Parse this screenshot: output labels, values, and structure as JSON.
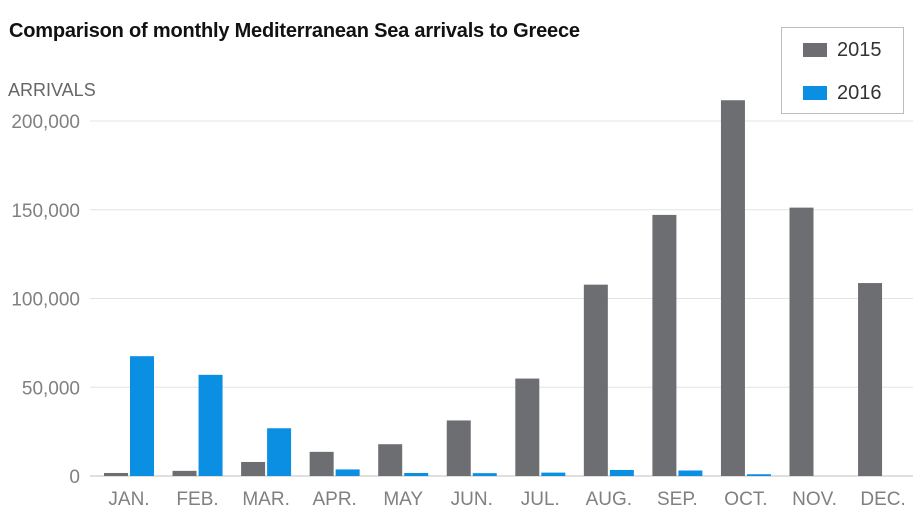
{
  "chart_data": {
    "type": "bar",
    "title": "Comparison of monthly Mediterranean Sea arrivals to Greece",
    "ylabel": "ARRIVALS",
    "xlabel": "",
    "categories": [
      "JAN.",
      "FEB.",
      "MAR.",
      "APR.",
      "MAY",
      "JUN.",
      "JUL.",
      "AUG.",
      "SEP.",
      "OCT.",
      "NOV.",
      "DEC."
    ],
    "series": [
      {
        "name": "2015",
        "color": "#6d6e71",
        "values": [
          1700,
          2900,
          7900,
          13600,
          17900,
          31300,
          54900,
          107800,
          147100,
          211700,
          151200,
          108700
        ]
      },
      {
        "name": "2016",
        "color": "#0a8fe3",
        "values": [
          67500,
          57000,
          26900,
          3700,
          1700,
          1600,
          1900,
          3400,
          3100,
          1000,
          null,
          null
        ]
      }
    ],
    "ylim": [
      0,
      200000
    ],
    "yticks": [
      0,
      50000,
      100000,
      150000,
      200000
    ],
    "ytick_labels": [
      "0",
      "50,000",
      "100,000",
      "150,000",
      "200,000"
    ],
    "grid": true,
    "legend_position": "top-right"
  }
}
